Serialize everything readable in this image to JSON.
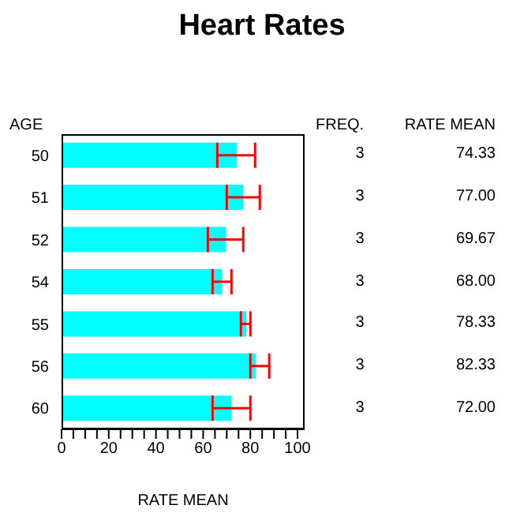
{
  "chart_data": {
    "type": "bar",
    "orientation": "horizontal",
    "title": "Heart Rates",
    "ylabel": "AGE",
    "xlabel": "RATE MEAN",
    "categories": [
      "50",
      "51",
      "52",
      "54",
      "55",
      "56",
      "60"
    ],
    "series": [
      {
        "color": "#00ffff",
        "values": [
          74.33,
          77.0,
          69.67,
          68.0,
          78.33,
          82.33,
          72.0
        ],
        "errors": [
          [
            66,
            82
          ],
          [
            70,
            84
          ],
          [
            62,
            77
          ],
          [
            64,
            72
          ],
          [
            76,
            80
          ],
          [
            80,
            88
          ],
          [
            64,
            80
          ]
        ],
        "value_labels": [
          "74.33",
          "77.00",
          "69.67",
          "68.00",
          "78.33",
          "82.33",
          "72.00"
        ]
      }
    ],
    "xlim": [
      0,
      103
    ],
    "xticks": [
      0,
      {
        "value": 5,
        "label": null
      },
      {
        "value": 10,
        "label": null
      },
      {
        "value": 15,
        "label": null
      },
      20,
      {
        "value": 25,
        "label": null
      },
      {
        "value": 30,
        "label": null
      },
      {
        "value": 35,
        "label": null
      },
      40,
      {
        "value": 45,
        "label": null
      },
      {
        "value": 50,
        "label": null
      },
      {
        "value": 55,
        "label": null
      },
      60,
      {
        "value": 65,
        "label": null
      },
      {
        "value": 70,
        "label": null
      },
      {
        "value": 75,
        "label": null
      },
      80,
      {
        "value": 85,
        "label": null
      },
      {
        "value": 90,
        "label": null
      },
      {
        "value": 95,
        "label": null
      },
      100
    ],
    "grid": false,
    "legend": false,
    "annotations": [
      "FREQ.",
      "RATE MEAN",
      "3",
      "3",
      "3",
      "3",
      "3",
      "3",
      "3"
    ]
  }
}
